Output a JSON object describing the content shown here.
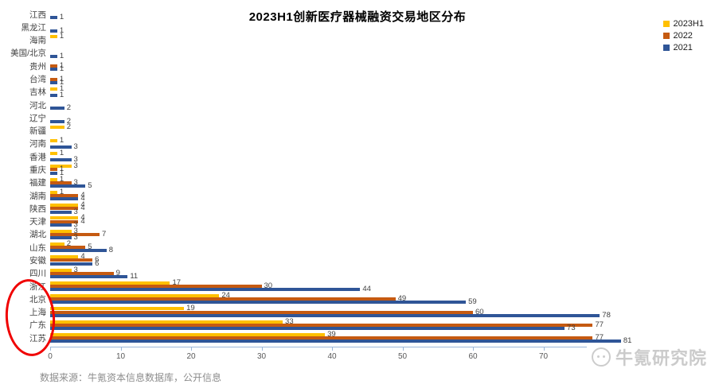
{
  "source_note": "数据来源：牛氪资本信息数据库，公开信息",
  "watermark": "牛氪研究院",
  "annotation": "red ellipse circling the bottom five region labels",
  "chart_data": {
    "type": "bar",
    "orientation": "horizontal",
    "title": "2023H1创新医疗器械融资交易地区分布",
    "legend_position": "top-right",
    "grid": false,
    "xlim": [
      0,
      90
    ],
    "x_ticks": [
      0,
      10,
      20,
      30,
      40,
      50,
      60,
      70,
      80
    ],
    "categories": [
      "江西",
      "黑龙江",
      "海南",
      "美国/北京",
      "贵州",
      "台湾",
      "吉林",
      "河北",
      "辽宁",
      "新疆",
      "河南",
      "香港",
      "重庆",
      "福建",
      "湖南",
      "陕西",
      "天津",
      "湖北",
      "山东",
      "安徽",
      "四川",
      "浙江",
      "北京",
      "上海",
      "广东",
      "江苏"
    ],
    "series": [
      {
        "name": "2023H1",
        "color": "#FFC000",
        "values": [
          null,
          null,
          1,
          null,
          null,
          null,
          1,
          null,
          null,
          2,
          1,
          1,
          3,
          1,
          1,
          4,
          4,
          3,
          2,
          4,
          3,
          17,
          24,
          19,
          33,
          39
        ]
      },
      {
        "name": "2022",
        "color": "#C55A11",
        "values": [
          null,
          null,
          null,
          null,
          1,
          1,
          null,
          null,
          null,
          null,
          null,
          null,
          1,
          3,
          4,
          4,
          4,
          7,
          5,
          6,
          9,
          30,
          49,
          60,
          77,
          77
        ]
      },
      {
        "name": "2021",
        "color": "#2F5597",
        "values": [
          1,
          1,
          null,
          1,
          1,
          1,
          1,
          2,
          2,
          null,
          3,
          3,
          1,
          5,
          4,
          3,
          3,
          3,
          8,
          6,
          11,
          44,
          59,
          78,
          73,
          81
        ]
      }
    ]
  }
}
